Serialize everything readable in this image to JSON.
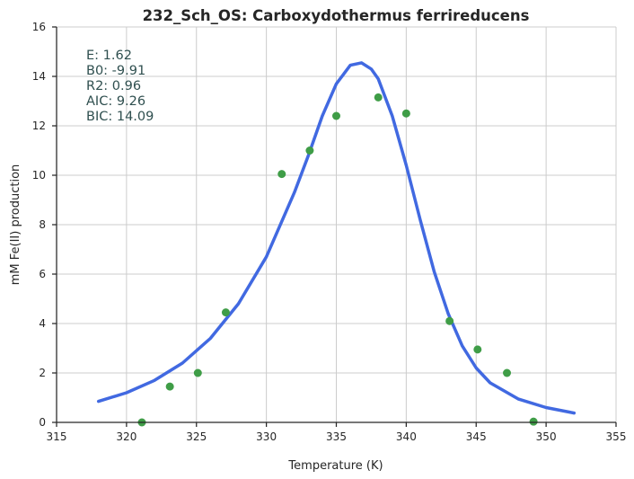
{
  "chart_data": {
    "type": "scatter",
    "title": "232_Sch_OS: Carboxydothermus ferrireducens",
    "xlabel": "Temperature (K)",
    "ylabel": "mM Fe(II) production",
    "xlim": [
      315,
      355
    ],
    "ylim": [
      0,
      16
    ],
    "xticks": [
      315,
      320,
      325,
      330,
      335,
      340,
      345,
      350,
      355
    ],
    "yticks": [
      0,
      2,
      4,
      6,
      8,
      10,
      12,
      14,
      16
    ],
    "grid": true,
    "series": [
      {
        "kind": "points",
        "color": "#3f9d47",
        "x": [
          321.1,
          323.1,
          325.1,
          327.1,
          331.1,
          333.1,
          335.0,
          338.0,
          340.0,
          343.1,
          345.1,
          347.2,
          349.1
        ],
        "y": [
          0.0,
          1.45,
          2.0,
          4.45,
          10.05,
          11.0,
          12.4,
          13.15,
          12.5,
          4.1,
          2.95,
          2.0,
          0.03
        ]
      },
      {
        "kind": "fit",
        "color": "#4169e1",
        "x": [
          318.0,
          320.0,
          322.0,
          324.0,
          326.0,
          328.0,
          330.0,
          332.0,
          333.0,
          334.0,
          335.0,
          336.0,
          336.8,
          337.5,
          338.0,
          339.0,
          340.0,
          341.0,
          342.0,
          343.0,
          344.0,
          345.0,
          346.0,
          348.0,
          350.0,
          352.0
        ],
        "y": [
          0.85,
          1.2,
          1.7,
          2.4,
          3.4,
          4.8,
          6.7,
          9.3,
          10.8,
          12.4,
          13.7,
          14.45,
          14.55,
          14.3,
          13.9,
          12.4,
          10.4,
          8.2,
          6.1,
          4.4,
          3.1,
          2.2,
          1.6,
          0.95,
          0.6,
          0.38
        ]
      }
    ],
    "annotations": [
      {
        "label": "E:",
        "value": "1.62"
      },
      {
        "label": "B0:",
        "value": "-9.91"
      },
      {
        "label": "R2:",
        "value": "0.96"
      },
      {
        "label": "AIC:",
        "value": "9.26"
      },
      {
        "label": "BIC:",
        "value": "14.09"
      }
    ],
    "annotation_color": "#2f4f4f"
  }
}
